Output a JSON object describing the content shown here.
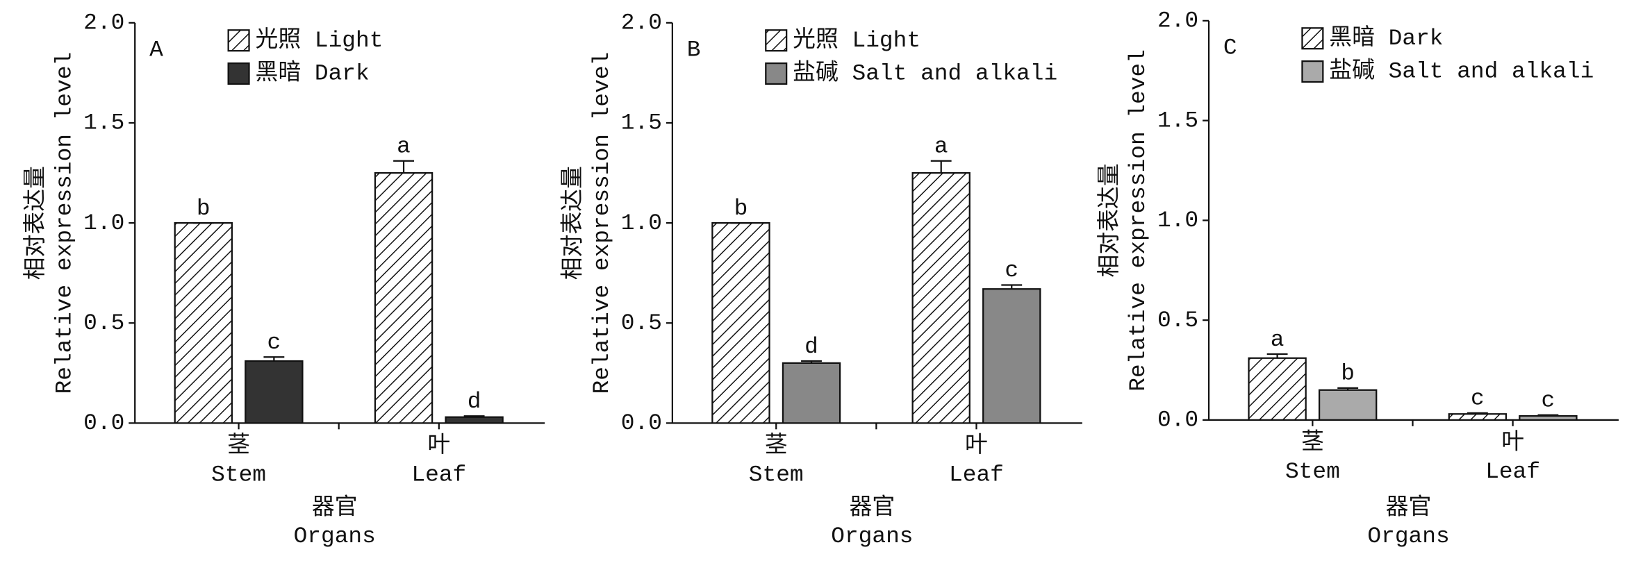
{
  "chart_data": [
    {
      "type": "bar",
      "panel": "A",
      "ylabel_zh": "相对表达量",
      "ylabel": "Relative expression level",
      "xlabel_zh": "器官",
      "xlabel": "Organs",
      "categories": [
        "茎",
        "叶"
      ],
      "categories_en": [
        "Stem",
        "Leaf"
      ],
      "ylim": [
        0,
        2
      ],
      "yticks": [
        {
          "value": 0,
          "label": "0.0"
        },
        {
          "value": 0.5,
          "label": "0.5"
        },
        {
          "value": 1,
          "label": "1.0"
        },
        {
          "value": 1.5,
          "label": "1.5"
        },
        {
          "value": 2,
          "label": "2.0"
        }
      ],
      "series": [
        {
          "name": "光照 Light",
          "color": "#ffffff",
          "hatch": true,
          "values": [
            1.0,
            1.25
          ],
          "errors": [
            0,
            0.06
          ],
          "significance": [
            "b",
            "a"
          ]
        },
        {
          "name": "黑暗 Dark",
          "color": "#333333",
          "hatch": false,
          "values": [
            0.31,
            0.03
          ],
          "errors": [
            0.02,
            0.005
          ],
          "significance": [
            "c",
            "d"
          ]
        }
      ]
    },
    {
      "type": "bar",
      "panel": "B",
      "ylabel_zh": "相对表达量",
      "ylabel": "Relative expression level",
      "xlabel_zh": "器官",
      "xlabel": "Organs",
      "categories": [
        "茎",
        "叶"
      ],
      "categories_en": [
        "Stem",
        "Leaf"
      ],
      "ylim": [
        0,
        2
      ],
      "yticks": [
        {
          "value": 0,
          "label": "0.0"
        },
        {
          "value": 0.5,
          "label": "0.5"
        },
        {
          "value": 1,
          "label": "1.0"
        },
        {
          "value": 1.5,
          "label": "1.5"
        },
        {
          "value": 2,
          "label": "2.0"
        }
      ],
      "series": [
        {
          "name": "光照 Light",
          "color": "#ffffff",
          "hatch": true,
          "values": [
            1.0,
            1.25
          ],
          "errors": [
            0,
            0.06
          ],
          "significance": [
            "b",
            "a"
          ]
        },
        {
          "name": "盐碱 Salt and alkali",
          "color": "#888888",
          "hatch": false,
          "values": [
            0.3,
            0.67
          ],
          "errors": [
            0.01,
            0.02
          ],
          "significance": [
            "d",
            "c"
          ]
        }
      ]
    },
    {
      "type": "bar",
      "panel": "C",
      "ylabel_zh": "相对表达量",
      "ylabel": "Relative expression level",
      "xlabel_zh": "器官",
      "xlabel": "Organs",
      "categories": [
        "茎",
        "叶"
      ],
      "categories_en": [
        "Stem",
        "Leaf"
      ],
      "ylim": [
        0,
        2
      ],
      "yticks": [
        {
          "value": 0,
          "label": "0.0"
        },
        {
          "value": 0.5,
          "label": "0.5"
        },
        {
          "value": 1,
          "label": "1.0"
        },
        {
          "value": 1.5,
          "label": "1.5"
        },
        {
          "value": 2,
          "label": "2.0"
        }
      ],
      "series": [
        {
          "name": "黑暗 Dark",
          "color": "#ffffff",
          "hatch": true,
          "values": [
            0.31,
            0.03
          ],
          "errors": [
            0.02,
            0.005
          ],
          "significance": [
            "a",
            "c"
          ]
        },
        {
          "name": "盐碱 Salt and alkali",
          "color": "#aaaaaa",
          "hatch": false,
          "values": [
            0.15,
            0.02
          ],
          "errors": [
            0.01,
            0.005
          ],
          "significance": [
            "b",
            "c"
          ]
        }
      ]
    }
  ]
}
